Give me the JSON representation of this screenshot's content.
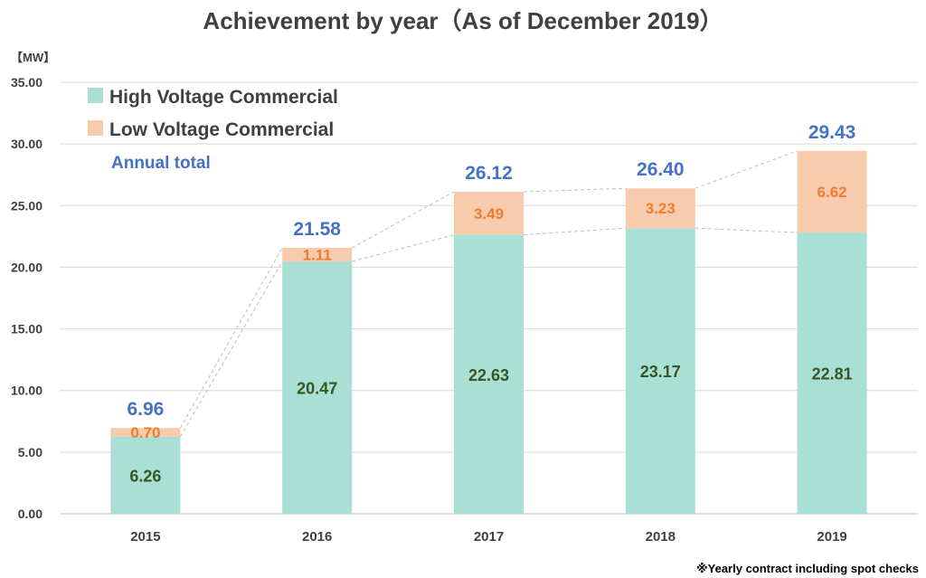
{
  "chart_data": {
    "type": "bar",
    "stacked": true,
    "title": "Achievement by year（As of December 2019）",
    "unit_label": "【MW】",
    "categories": [
      "2015",
      "2016",
      "2017",
      "2018",
      "2019"
    ],
    "series": [
      {
        "name": "High Voltage Commercial",
        "color": "#a9dfd4",
        "label_color": "#375623",
        "values": [
          6.26,
          20.47,
          22.63,
          23.17,
          22.81
        ],
        "labels": [
          "6.26",
          "20.47",
          "22.63",
          "23.17",
          "22.81"
        ]
      },
      {
        "name": "Low Voltage Commercial",
        "color": "#f8cbad",
        "label_color": "#ed7d31",
        "values": [
          0.7,
          1.11,
          3.49,
          3.23,
          6.62
        ],
        "labels": [
          "0.70",
          "1.11",
          "3.49",
          "3.23",
          "6.62"
        ]
      }
    ],
    "totals": {
      "name": "Annual total",
      "color": "#4472c4",
      "values": [
        6.96,
        21.58,
        26.12,
        26.4,
        29.43
      ],
      "labels": [
        "6.96",
        "21.58",
        "26.12",
        "26.40",
        "29.43"
      ]
    },
    "y_ticks": [
      "0.00",
      "5.00",
      "10.00",
      "15.00",
      "20.00",
      "25.00",
      "30.00",
      "35.00"
    ],
    "ylim": [
      0,
      35
    ],
    "grid": true,
    "legend_position": "top-left",
    "footnote": "※Yearly contract including spot checks"
  }
}
